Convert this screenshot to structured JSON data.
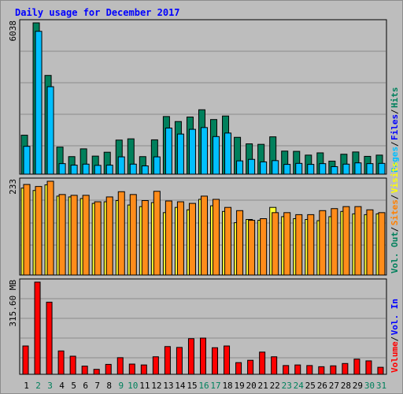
{
  "chart_data": {
    "type": "bar",
    "title": "Daily usage for December 2017",
    "categories": [
      "1",
      "2",
      "3",
      "4",
      "5",
      "6",
      "7",
      "8",
      "9",
      "10",
      "11",
      "12",
      "13",
      "14",
      "15",
      "16",
      "17",
      "18",
      "19",
      "20",
      "21",
      "22",
      "23",
      "24",
      "25",
      "26",
      "27",
      "28",
      "29",
      "30",
      "31"
    ],
    "weekend_days": [
      "2",
      "3",
      "9",
      "10",
      "16",
      "17",
      "23",
      "24",
      "30",
      "31"
    ],
    "panels": [
      {
        "id": "hits_files",
        "ylabel": "6038",
        "ymax": 6038,
        "right_labels": [
          {
            "text": "Hits",
            "color": "#00805c"
          },
          {
            "text": "Files",
            "color": "#0000ff"
          },
          {
            "text": "Pages",
            "color": "#00bfff"
          }
        ],
        "series": [
          {
            "name": "Hits",
            "color": "#00805c",
            "values": [
              1555,
              6038,
              3940,
              1080,
              700,
              1010,
              720,
              875,
              1360,
              1410,
              700,
              1370,
              2300,
              2100,
              2280,
              2570,
              2180,
              2320,
              1470,
              1210,
              1190,
              1490,
              920,
              910,
              760,
              850,
              520,
              795,
              885,
              710,
              760
            ]
          },
          {
            "name": "Files",
            "color": "#00bfff",
            "values": [
              1110,
              5700,
              3490,
              420,
              360,
              400,
              350,
              360,
              690,
              400,
              330,
              690,
              1840,
              1600,
              1790,
              1860,
              1500,
              1640,
              530,
              590,
              490,
              540,
              390,
              430,
              390,
              420,
              300,
              400,
              450,
              420,
              430
            ]
          }
        ]
      },
      {
        "id": "visits_sites",
        "ylabel": "233",
        "ymax": 233,
        "right_labels": [
          {
            "text": "Visits",
            "color": "#ffff00"
          },
          {
            "text": "Sites",
            "color": "#ff8000"
          },
          {
            "text": "Vol. Out",
            "color": "#00805c"
          }
        ],
        "series": [
          {
            "name": "Visits",
            "color": "#ffff33",
            "values": [
              216,
              210,
              224,
              196,
              194,
              190,
              178,
              182,
              185,
              174,
              170,
              180,
              155,
              168,
              162,
              188,
              172,
              158,
              130,
              138,
              136,
              168,
              145,
              140,
              138,
              135,
              145,
              158,
              152,
              150,
              152
            ]
          },
          {
            "name": "Sites",
            "color": "#ff8c1a",
            "values": [
              225,
              220,
              233,
              200,
              198,
              198,
              182,
              194,
              207,
              200,
              185,
              208,
              184,
              182,
              178,
              196,
              188,
              168,
              160,
              136,
              140,
              155,
              155,
              150,
              150,
              160,
              165,
              170,
              170,
              162,
              155
            ]
          }
        ]
      },
      {
        "id": "volume",
        "ylabel": "315.60 MB",
        "ymax": 315.6,
        "right_labels": [
          {
            "text": "Vol. In",
            "color": "#0000ff"
          },
          {
            "text": "Volume",
            "color": "#ff0000"
          }
        ],
        "series": [
          {
            "name": "Volume",
            "color": "#ff0000",
            "values": [
              97,
              315.6,
              247,
              80,
              62,
              28,
              17,
              34,
              57,
              35,
              32,
              60,
              95,
              92,
              122,
              124,
              91,
              97,
              40,
              48,
              76,
              60,
              30,
              32,
              30,
              26,
              29,
              37,
              52,
              46,
              24
            ]
          }
        ]
      }
    ]
  }
}
